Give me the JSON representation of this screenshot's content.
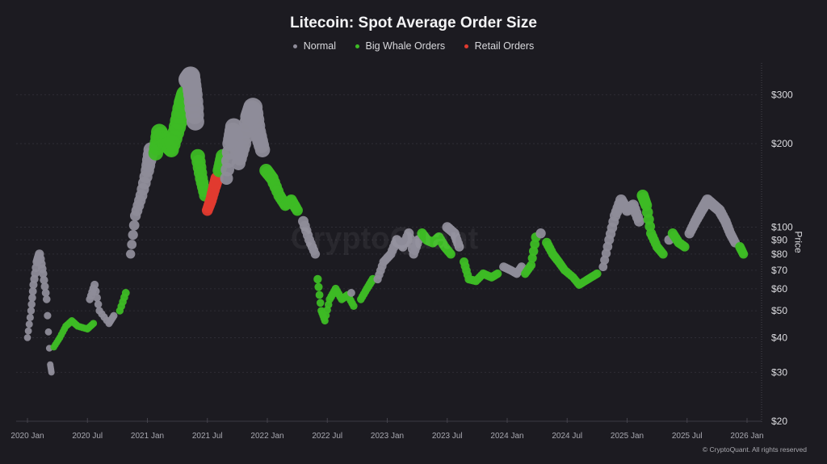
{
  "chart_data": {
    "type": "scatter",
    "title": "Litecoin: Spot Average Order Size",
    "ylabel": "Price",
    "xlabel": "",
    "yscale": "log",
    "ylim": [
      20,
      380
    ],
    "xlim": [
      2019.95,
      2026.1
    ],
    "legend_position": "top-center",
    "legend": [
      {
        "key": "N",
        "name": "Normal",
        "color": "#8e8c99"
      },
      {
        "key": "W",
        "name": "Big Whale Orders",
        "color": "#3dbb25"
      },
      {
        "key": "R",
        "name": "Retail Orders",
        "color": "#e03a2f"
      }
    ],
    "y_ticks": [
      {
        "value": 300,
        "label": "$300"
      },
      {
        "value": 200,
        "label": "$200"
      },
      {
        "value": 100,
        "label": "$100"
      },
      {
        "value": 90,
        "label": "$90"
      },
      {
        "value": 80,
        "label": "$80"
      },
      {
        "value": 70,
        "label": "$70"
      },
      {
        "value": 60,
        "label": "$60"
      },
      {
        "value": 50,
        "label": "$50"
      },
      {
        "value": 40,
        "label": "$40"
      },
      {
        "value": 30,
        "label": "$30"
      },
      {
        "value": 20,
        "label": "$20"
      }
    ],
    "x_ticks": [
      {
        "value": 2020.0,
        "label": "2020 Jan"
      },
      {
        "value": 2020.5,
        "label": "2020 Jul"
      },
      {
        "value": 2021.0,
        "label": "2021 Jan"
      },
      {
        "value": 2021.5,
        "label": "2021 Jul"
      },
      {
        "value": 2022.0,
        "label": "2022 Jan"
      },
      {
        "value": 2022.5,
        "label": "2022 Jul"
      },
      {
        "value": 2023.0,
        "label": "2023 Jan"
      },
      {
        "value": 2023.5,
        "label": "2023 Jul"
      },
      {
        "value": 2024.0,
        "label": "2024 Jan"
      },
      {
        "value": 2024.5,
        "label": "2024 Jul"
      },
      {
        "value": 2025.0,
        "label": "2025 Jan"
      },
      {
        "value": 2025.5,
        "label": "2025 Jul"
      },
      {
        "value": 2026.0,
        "label": "2026 Jan"
      }
    ],
    "points": [
      [
        2020.0,
        40,
        "N"
      ],
      [
        2020.03,
        50,
        "N"
      ],
      [
        2020.05,
        62,
        "N"
      ],
      [
        2020.08,
        75,
        "N"
      ],
      [
        2020.1,
        80,
        "N"
      ],
      [
        2020.13,
        68,
        "N"
      ],
      [
        2020.16,
        55,
        "N"
      ],
      [
        2020.19,
        32,
        "N"
      ],
      [
        2020.2,
        30,
        "N"
      ],
      [
        2020.22,
        37,
        "W"
      ],
      [
        2020.27,
        40,
        "W"
      ],
      [
        2020.32,
        44,
        "W"
      ],
      [
        2020.37,
        46,
        "W"
      ],
      [
        2020.42,
        44,
        "W"
      ],
      [
        2020.5,
        43,
        "W"
      ],
      [
        2020.55,
        45,
        "W"
      ],
      [
        2020.52,
        55,
        "N"
      ],
      [
        2020.56,
        62,
        "N"
      ],
      [
        2020.6,
        50,
        "N"
      ],
      [
        2020.68,
        45,
        "N"
      ],
      [
        2020.72,
        48,
        "N"
      ],
      [
        2020.77,
        50,
        "W"
      ],
      [
        2020.82,
        58,
        "W"
      ],
      [
        2020.86,
        80,
        "N"
      ],
      [
        2020.9,
        110,
        "N"
      ],
      [
        2020.95,
        130,
        "N"
      ],
      [
        2021.0,
        160,
        "N"
      ],
      [
        2021.03,
        190,
        "N"
      ],
      [
        2021.07,
        185,
        "W"
      ],
      [
        2021.1,
        220,
        "W"
      ],
      [
        2021.15,
        200,
        "W"
      ],
      [
        2021.2,
        190,
        "W"
      ],
      [
        2021.25,
        230,
        "W"
      ],
      [
        2021.3,
        280,
        "W"
      ],
      [
        2021.32,
        300,
        "W"
      ],
      [
        2021.34,
        340,
        "N"
      ],
      [
        2021.36,
        350,
        "N"
      ],
      [
        2021.38,
        300,
        "N"
      ],
      [
        2021.4,
        240,
        "N"
      ],
      [
        2021.42,
        180,
        "W"
      ],
      [
        2021.45,
        150,
        "W"
      ],
      [
        2021.48,
        130,
        "W"
      ],
      [
        2021.5,
        115,
        "R"
      ],
      [
        2021.53,
        125,
        "R"
      ],
      [
        2021.56,
        140,
        "R"
      ],
      [
        2021.58,
        150,
        "R"
      ],
      [
        2021.6,
        160,
        "W"
      ],
      [
        2021.63,
        180,
        "W"
      ],
      [
        2021.66,
        150,
        "N"
      ],
      [
        2021.69,
        200,
        "N"
      ],
      [
        2021.72,
        230,
        "N"
      ],
      [
        2021.76,
        170,
        "N"
      ],
      [
        2021.8,
        200,
        "N"
      ],
      [
        2021.85,
        250,
        "N"
      ],
      [
        2021.88,
        270,
        "N"
      ],
      [
        2021.92,
        220,
        "N"
      ],
      [
        2021.96,
        190,
        "N"
      ],
      [
        2021.99,
        160,
        "W"
      ],
      [
        2022.04,
        150,
        "W"
      ],
      [
        2022.1,
        130,
        "W"
      ],
      [
        2022.15,
        120,
        "W"
      ],
      [
        2022.2,
        125,
        "W"
      ],
      [
        2022.25,
        115,
        "W"
      ],
      [
        2022.3,
        105,
        "N"
      ],
      [
        2022.35,
        90,
        "N"
      ],
      [
        2022.4,
        80,
        "N"
      ],
      [
        2022.42,
        65,
        "W"
      ],
      [
        2022.45,
        50,
        "W"
      ],
      [
        2022.48,
        46,
        "W"
      ],
      [
        2022.52,
        55,
        "W"
      ],
      [
        2022.57,
        60,
        "W"
      ],
      [
        2022.62,
        55,
        "W"
      ],
      [
        2022.67,
        57,
        "W"
      ],
      [
        2022.72,
        52,
        "W"
      ],
      [
        2022.7,
        58,
        "N"
      ],
      [
        2022.78,
        55,
        "W"
      ],
      [
        2022.83,
        60,
        "W"
      ],
      [
        2022.88,
        65,
        "W"
      ],
      [
        2022.92,
        65,
        "N"
      ],
      [
        2022.97,
        75,
        "N"
      ],
      [
        2023.03,
        80,
        "N"
      ],
      [
        2023.08,
        90,
        "N"
      ],
      [
        2023.13,
        85,
        "N"
      ],
      [
        2023.18,
        95,
        "N"
      ],
      [
        2023.22,
        80,
        "N"
      ],
      [
        2023.26,
        90,
        "N"
      ],
      [
        2023.29,
        95,
        "W"
      ],
      [
        2023.33,
        90,
        "W"
      ],
      [
        2023.38,
        88,
        "W"
      ],
      [
        2023.43,
        92,
        "W"
      ],
      [
        2023.48,
        85,
        "W"
      ],
      [
        2023.53,
        80,
        "W"
      ],
      [
        2023.5,
        100,
        "N"
      ],
      [
        2023.56,
        95,
        "N"
      ],
      [
        2023.6,
        85,
        "N"
      ],
      [
        2023.64,
        75,
        "W"
      ],
      [
        2023.68,
        65,
        "W"
      ],
      [
        2023.74,
        64,
        "W"
      ],
      [
        2023.8,
        68,
        "W"
      ],
      [
        2023.87,
        66,
        "W"
      ],
      [
        2023.92,
        68,
        "W"
      ],
      [
        2023.97,
        72,
        "N"
      ],
      [
        2024.03,
        70,
        "N"
      ],
      [
        2024.08,
        68,
        "N"
      ],
      [
        2024.12,
        72,
        "N"
      ],
      [
        2024.15,
        68,
        "W"
      ],
      [
        2024.2,
        73,
        "W"
      ],
      [
        2024.24,
        92,
        "W"
      ],
      [
        2024.28,
        95,
        "N"
      ],
      [
        2024.33,
        88,
        "W"
      ],
      [
        2024.38,
        80,
        "W"
      ],
      [
        2024.43,
        75,
        "W"
      ],
      [
        2024.48,
        70,
        "W"
      ],
      [
        2024.55,
        66,
        "W"
      ],
      [
        2024.6,
        62,
        "W"
      ],
      [
        2024.65,
        64,
        "W"
      ],
      [
        2024.7,
        66,
        "W"
      ],
      [
        2024.75,
        68,
        "W"
      ],
      [
        2024.8,
        72,
        "N"
      ],
      [
        2024.85,
        90,
        "N"
      ],
      [
        2024.9,
        110,
        "N"
      ],
      [
        2024.95,
        125,
        "N"
      ],
      [
        2025.0,
        115,
        "N"
      ],
      [
        2025.05,
        120,
        "N"
      ],
      [
        2025.1,
        105,
        "N"
      ],
      [
        2025.13,
        130,
        "W"
      ],
      [
        2025.16,
        120,
        "W"
      ],
      [
        2025.2,
        95,
        "W"
      ],
      [
        2025.25,
        85,
        "W"
      ],
      [
        2025.3,
        80,
        "W"
      ],
      [
        2025.35,
        90,
        "N"
      ],
      [
        2025.38,
        95,
        "W"
      ],
      [
        2025.43,
        88,
        "W"
      ],
      [
        2025.48,
        85,
        "W"
      ],
      [
        2025.52,
        95,
        "N"
      ],
      [
        2025.57,
        105,
        "N"
      ],
      [
        2025.62,
        115,
        "N"
      ],
      [
        2025.67,
        125,
        "N"
      ],
      [
        2025.72,
        120,
        "N"
      ],
      [
        2025.77,
        115,
        "N"
      ],
      [
        2025.82,
        105,
        "N"
      ],
      [
        2025.86,
        95,
        "N"
      ],
      [
        2025.9,
        88,
        "N"
      ],
      [
        2025.94,
        85,
        "W"
      ],
      [
        2025.97,
        80,
        "W"
      ]
    ],
    "watermark": "CryptoQuant"
  },
  "copyright": "© CryptoQuant. All rights reserved"
}
